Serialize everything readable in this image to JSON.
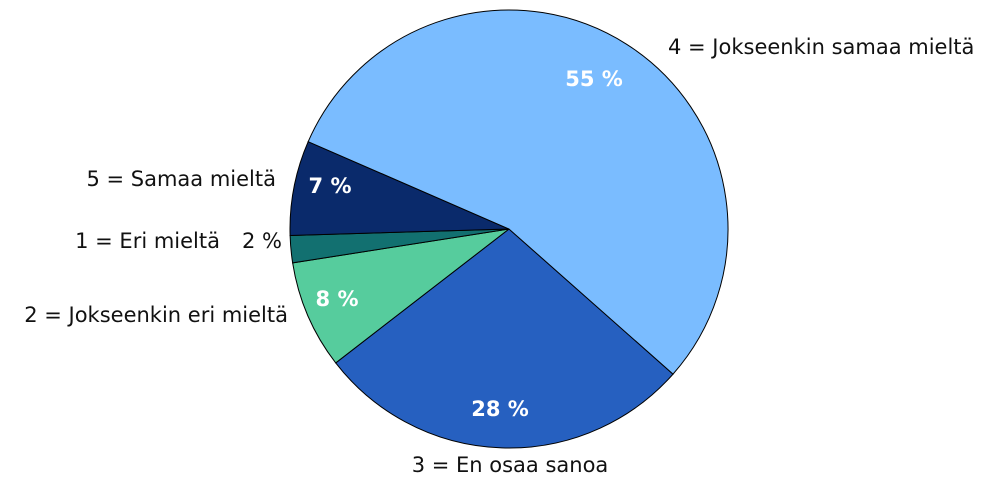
{
  "chart_data": {
    "type": "pie",
    "categories": [
      "3 = En osaa sanoa",
      "2 = Jokseenkin eri mieltä",
      "1 = Eri mieltä",
      "5 = Samaa mieltä",
      "4 = Jokseenkin samaa mieltä"
    ],
    "values": [
      28,
      8,
      2,
      7,
      55
    ],
    "value_labels": [
      "28 %",
      "8 %",
      "2 %",
      "7 %",
      "55 %"
    ],
    "colors": [
      "#2660c0",
      "#56cc9d",
      "#127070",
      "#0a2a6b",
      "#7abcff"
    ]
  }
}
